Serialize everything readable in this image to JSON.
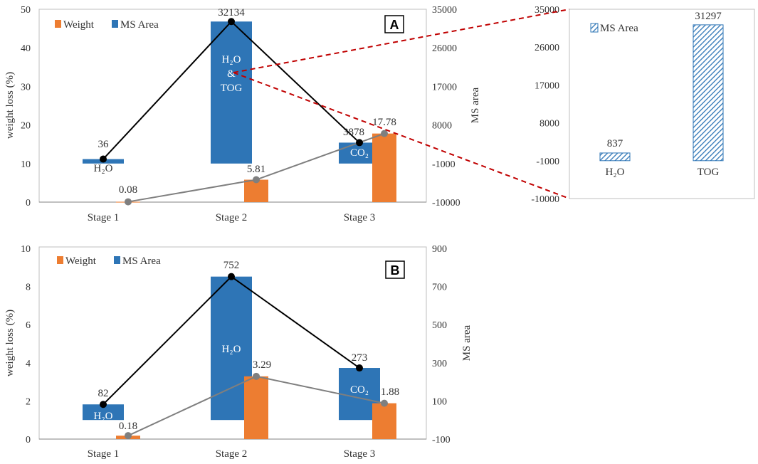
{
  "colors": {
    "weight": "#ED7D31",
    "ms_area": "#2E75B6",
    "ms_line": "#000000",
    "weight_line": "#7F7F7F",
    "zoom_link": "#C00000",
    "axis": "#595959"
  },
  "chart_data": [
    {
      "panel": "A",
      "type": "bar",
      "categories": [
        "Stage 1",
        "Stage 2",
        "Stage 3"
      ],
      "ylabel": "weight loss (%)",
      "y2label": "MS area",
      "ylim": [
        0,
        50
      ],
      "yticks": [
        "0",
        "10",
        "20",
        "30",
        "40",
        "50"
      ],
      "y2lim": [
        -10000,
        35000
      ],
      "y2ticks": [
        "-10000",
        "-1000",
        "8000",
        "17000",
        "26000",
        "35000"
      ],
      "legend": [
        "Weight",
        "MS Area"
      ],
      "series": [
        {
          "name": "Weight",
          "axis": "left",
          "values": [
            0.08,
            5.81,
            17.78
          ],
          "labels": [
            "0.08",
            "5.81",
            "17.78"
          ]
        },
        {
          "name": "MS Area",
          "axis": "right",
          "base": -1000,
          "values": [
            36,
            32134,
            3878
          ],
          "labels": [
            "36",
            "32134",
            "3878"
          ]
        }
      ],
      "gas_labels": [
        "H₂O",
        "H₂O",
        "&",
        "TOG",
        "CO₂"
      ]
    },
    {
      "panel": "A-zoom",
      "type": "bar",
      "categories": [
        "H₂O",
        "TOG"
      ],
      "ylim": [
        -10000,
        35000
      ],
      "yticks": [
        "-10000",
        "-1000",
        "8000",
        "17000",
        "26000",
        "35000"
      ],
      "legend": [
        "MS Area"
      ],
      "base": -1000,
      "values": [
        837,
        31297
      ],
      "labels": [
        "837",
        "31297"
      ]
    },
    {
      "panel": "B",
      "type": "bar",
      "categories": [
        "Stage 1",
        "Stage 2",
        "Stage 3"
      ],
      "ylabel": "weight loss (%)",
      "y2label": "MS area",
      "ylim": [
        0,
        10
      ],
      "yticks": [
        "0",
        "2",
        "4",
        "6",
        "8",
        "10"
      ],
      "y2lim": [
        -100,
        900
      ],
      "y2ticks": [
        "-100",
        "100",
        "300",
        "500",
        "700",
        "900"
      ],
      "legend": [
        "Weight",
        "MS Area"
      ],
      "series": [
        {
          "name": "Weight",
          "axis": "left",
          "values": [
            0.18,
            3.29,
            1.88
          ],
          "labels": [
            "0.18",
            "3.29",
            "1.88"
          ]
        },
        {
          "name": "MS Area",
          "axis": "right",
          "base": 0,
          "values": [
            82,
            752,
            273
          ],
          "labels": [
            "82",
            "752",
            "273"
          ]
        }
      ],
      "gas_labels": [
        "H₂O",
        "H₂O",
        "CO₂"
      ]
    }
  ]
}
